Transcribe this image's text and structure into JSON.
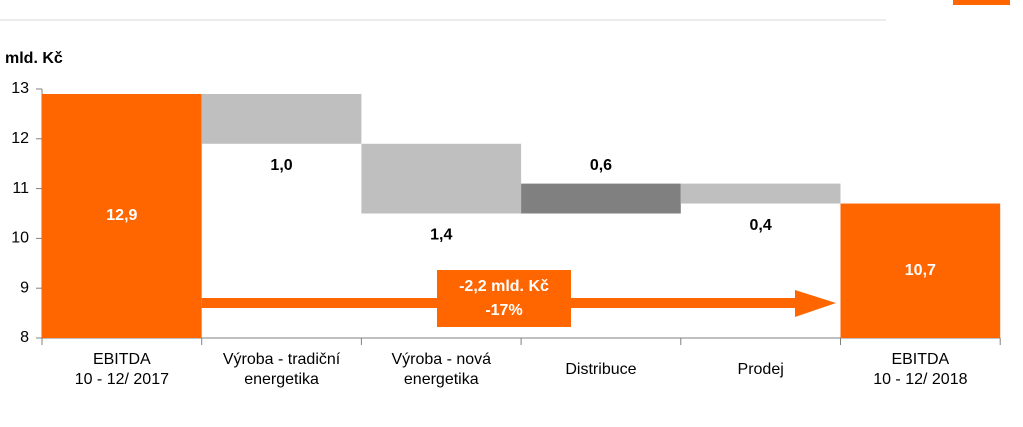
{
  "chart_data": {
    "type": "waterfall",
    "y_label": "mld. Kč",
    "categories": [
      "EBITDA\n10 - 12/ 2017",
      "Výroba - tradiční\nenergetika",
      "Výroba - nová\nenergetika",
      "Distribuce",
      "Prodej",
      "EBITDA\n10 - 12/ 2018"
    ],
    "values": [
      12.9,
      -1.0,
      -1.4,
      0.6,
      -0.4,
      10.7
    ],
    "value_labels": [
      "12,9",
      "1,0",
      "1,4",
      "0,6",
      "0,4",
      "10,7"
    ],
    "kinds": [
      "total",
      "delta",
      "delta",
      "delta",
      "delta",
      "total"
    ],
    "colors": [
      "#ff6600",
      "#bfbfbf",
      "#bfbfbf",
      "#808080",
      "#bfbfbf",
      "#ff6600"
    ],
    "ylim": [
      8,
      13
    ],
    "yticks": [
      8,
      9,
      10,
      11,
      12,
      13
    ],
    "annotation": [
      "-2,2 mld. Kč",
      "-17%"
    ]
  }
}
